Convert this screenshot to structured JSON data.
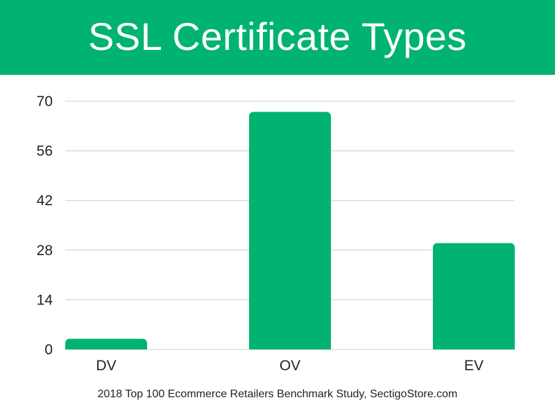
{
  "header": {
    "title": "SSL Certificate Types"
  },
  "footer": {
    "source": "2018 Top 100 Ecommerce Retailers Benchmark Study, SectigoStore.com"
  },
  "colors": {
    "accent": "#00b371",
    "gridline": "#cccccc",
    "text": "#222222"
  },
  "chart_data": {
    "type": "bar",
    "title": "SSL Certificate Types",
    "xlabel": "",
    "ylabel": "",
    "categories": [
      "DV",
      "OV",
      "EV"
    ],
    "values": [
      3,
      67,
      30
    ],
    "ylim": [
      0,
      70
    ],
    "yticks": [
      0,
      14,
      28,
      42,
      56,
      70
    ],
    "grid": true,
    "legend": "none"
  }
}
